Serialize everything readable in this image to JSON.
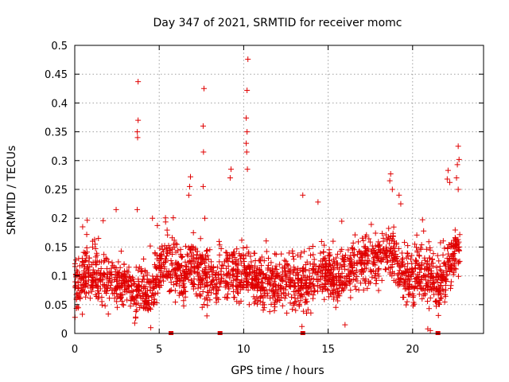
{
  "chart_data": {
    "type": "scatter",
    "title": "Day 347 of 2021, SRMTID for receiver momc",
    "xlabel": "GPS time / hours",
    "ylabel": "SRMTID / TECUs",
    "xlim": [
      0,
      24.2
    ],
    "ylim": [
      0,
      0.5
    ],
    "x_ticks": [
      0,
      5,
      10,
      15,
      20
    ],
    "x_tick_labels": [
      "0",
      "5",
      "10",
      "15",
      "20"
    ],
    "y_ticks": [
      0,
      0.05,
      0.1,
      0.15,
      0.2,
      0.25,
      0.3,
      0.35,
      0.4,
      0.45,
      0.5
    ],
    "y_tick_labels": [
      "0",
      "0.05",
      "0.1",
      "0.15",
      "0.2",
      "0.25",
      "0.3",
      "0.35",
      "0.4",
      "0.45",
      "0.5"
    ],
    "grid": true,
    "marker": "plus",
    "color": "#e00000",
    "baseline_marks_x": [
      5.7,
      8.6,
      13.5,
      21.5
    ],
    "baseline_trend": [
      {
        "x": 0.0,
        "y": 0.088
      },
      {
        "x": 0.5,
        "y": 0.095
      },
      {
        "x": 1.0,
        "y": 0.1
      },
      {
        "x": 1.5,
        "y": 0.095
      },
      {
        "x": 2.0,
        "y": 0.092
      },
      {
        "x": 2.5,
        "y": 0.085
      },
      {
        "x": 3.0,
        "y": 0.085
      },
      {
        "x": 3.5,
        "y": 0.08
      },
      {
        "x": 4.0,
        "y": 0.075
      },
      {
        "x": 4.5,
        "y": 0.07
      },
      {
        "x": 5.0,
        "y": 0.11
      },
      {
        "x": 5.5,
        "y": 0.13
      },
      {
        "x": 6.0,
        "y": 0.1
      },
      {
        "x": 6.5,
        "y": 0.105
      },
      {
        "x": 7.0,
        "y": 0.12
      },
      {
        "x": 7.5,
        "y": 0.1
      },
      {
        "x": 8.0,
        "y": 0.09
      },
      {
        "x": 8.5,
        "y": 0.1
      },
      {
        "x": 9.0,
        "y": 0.11
      },
      {
        "x": 9.5,
        "y": 0.1
      },
      {
        "x": 10.0,
        "y": 0.105
      },
      {
        "x": 10.5,
        "y": 0.1
      },
      {
        "x": 11.0,
        "y": 0.09
      },
      {
        "x": 11.5,
        "y": 0.085
      },
      {
        "x": 12.0,
        "y": 0.09
      },
      {
        "x": 12.5,
        "y": 0.085
      },
      {
        "x": 13.0,
        "y": 0.08
      },
      {
        "x": 13.5,
        "y": 0.085
      },
      {
        "x": 14.0,
        "y": 0.095
      },
      {
        "x": 14.5,
        "y": 0.11
      },
      {
        "x": 15.0,
        "y": 0.1
      },
      {
        "x": 15.5,
        "y": 0.095
      },
      {
        "x": 16.0,
        "y": 0.105
      },
      {
        "x": 16.5,
        "y": 0.11
      },
      {
        "x": 17.0,
        "y": 0.12
      },
      {
        "x": 17.5,
        "y": 0.125
      },
      {
        "x": 18.0,
        "y": 0.13
      },
      {
        "x": 18.5,
        "y": 0.14
      },
      {
        "x": 19.0,
        "y": 0.13
      },
      {
        "x": 19.5,
        "y": 0.1
      },
      {
        "x": 20.0,
        "y": 0.095
      },
      {
        "x": 20.5,
        "y": 0.11
      },
      {
        "x": 21.0,
        "y": 0.1
      },
      {
        "x": 21.5,
        "y": 0.08
      },
      {
        "x": 22.0,
        "y": 0.1
      },
      {
        "x": 22.5,
        "y": 0.14
      },
      {
        "x": 22.8,
        "y": 0.16
      }
    ],
    "notable_points": [
      {
        "x": 3.75,
        "y": 0.437
      },
      {
        "x": 3.75,
        "y": 0.37
      },
      {
        "x": 3.7,
        "y": 0.35
      },
      {
        "x": 3.72,
        "y": 0.34
      },
      {
        "x": 3.7,
        "y": 0.215
      },
      {
        "x": 7.65,
        "y": 0.425
      },
      {
        "x": 7.6,
        "y": 0.36
      },
      {
        "x": 7.62,
        "y": 0.315
      },
      {
        "x": 7.6,
        "y": 0.255
      },
      {
        "x": 7.7,
        "y": 0.2
      },
      {
        "x": 10.25,
        "y": 0.476
      },
      {
        "x": 10.2,
        "y": 0.422
      },
      {
        "x": 10.15,
        "y": 0.374
      },
      {
        "x": 10.2,
        "y": 0.35
      },
      {
        "x": 10.15,
        "y": 0.33
      },
      {
        "x": 10.18,
        "y": 0.315
      },
      {
        "x": 10.22,
        "y": 0.285
      },
      {
        "x": 9.25,
        "y": 0.285
      },
      {
        "x": 9.2,
        "y": 0.27
      },
      {
        "x": 6.85,
        "y": 0.272
      },
      {
        "x": 6.8,
        "y": 0.255
      },
      {
        "x": 6.75,
        "y": 0.24
      },
      {
        "x": 2.45,
        "y": 0.215
      },
      {
        "x": 4.6,
        "y": 0.2
      },
      {
        "x": 13.5,
        "y": 0.24
      },
      {
        "x": 14.4,
        "y": 0.228
      },
      {
        "x": 18.7,
        "y": 0.277
      },
      {
        "x": 18.65,
        "y": 0.265
      },
      {
        "x": 18.8,
        "y": 0.25
      },
      {
        "x": 19.2,
        "y": 0.24
      },
      {
        "x": 19.3,
        "y": 0.225
      },
      {
        "x": 22.1,
        "y": 0.283
      },
      {
        "x": 22.05,
        "y": 0.268
      },
      {
        "x": 22.2,
        "y": 0.262
      },
      {
        "x": 22.7,
        "y": 0.325
      },
      {
        "x": 22.75,
        "y": 0.302
      },
      {
        "x": 22.65,
        "y": 0.293
      },
      {
        "x": 22.6,
        "y": 0.27
      },
      {
        "x": 22.7,
        "y": 0.25
      },
      {
        "x": 3.55,
        "y": 0.018
      },
      {
        "x": 4.5,
        "y": 0.01
      },
      {
        "x": 13.45,
        "y": 0.012
      },
      {
        "x": 16.0,
        "y": 0.015
      },
      {
        "x": 20.9,
        "y": 0.008
      },
      {
        "x": 21.05,
        "y": 0.005
      }
    ]
  }
}
